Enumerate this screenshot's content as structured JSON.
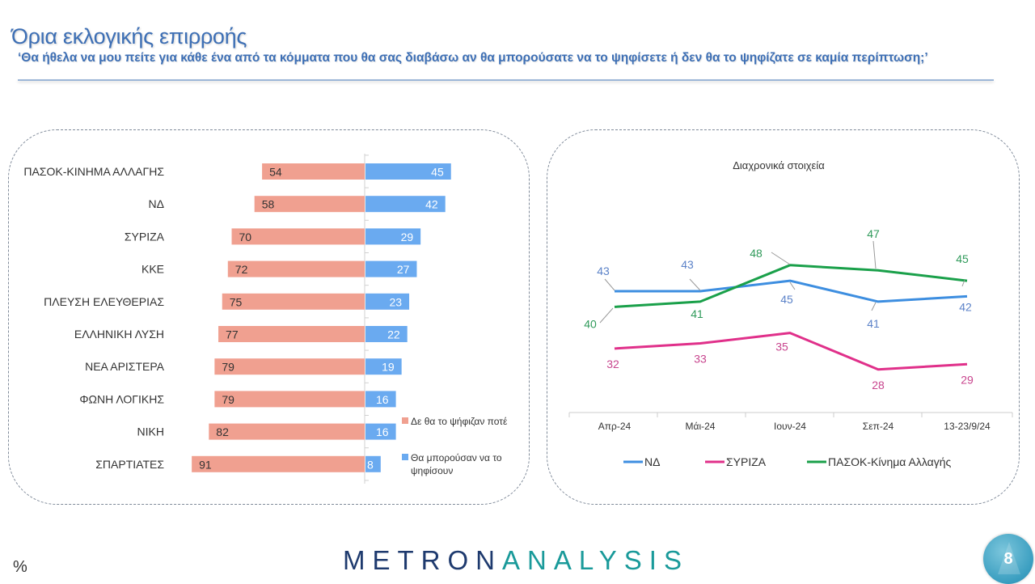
{
  "header": {
    "title": "Όρια εκλογικής επιρροής",
    "subtitle": "‘Θα ήθελα να μου πείτε για κάθε ένα από τα  κόμματα που θα σας διαβάσω αν θα μπορούσατε να το ψηφίσετε ή δεν θα το ψηφίζατε σε καμία περίπτωση;’"
  },
  "footer": {
    "unit_label": "%",
    "logo_part1": "METRON",
    "logo_part2": "ANALYSIS",
    "page_number": "8"
  },
  "colors": {
    "never": "#f0a090",
    "could": "#6aaaf0",
    "nd": "#3d8ee0",
    "syriza": "#e0308a",
    "pasok": "#1aa04a",
    "nd_label": "#5b82c8",
    "syriza_label": "#c8458e",
    "pasok_label": "#2f9a5a"
  },
  "chart_data": [
    {
      "type": "bar",
      "orientation": "horizontal-diverging",
      "categories": [
        "ΠΑΣΟΚ-ΚΙΝΗΜΑ ΑΛΛΑΓΗΣ",
        "ΝΔ",
        "ΣΥΡΙΖΑ",
        "ΚΚΕ",
        "ΠΛΕΥΣΗ ΕΛΕΥΘΕΡΙΑΣ",
        "ΕΛΛΗΝΙΚΗ ΛΥΣΗ",
        "ΝΕΑ ΑΡΙΣΤΕΡΑ",
        "ΦΩΝΗ ΛΟΓΙΚΗΣ",
        "ΝΙΚΗ",
        "ΣΠΑΡΤΙΑΤΕΣ"
      ],
      "series": [
        {
          "name": "Δε θα το ψήφιζαν ποτέ",
          "values": [
            54,
            58,
            70,
            72,
            75,
            77,
            79,
            79,
            82,
            91
          ]
        },
        {
          "name": "Θα μπορούσαν να το ψηφίσουν",
          "values": [
            45,
            42,
            29,
            27,
            23,
            22,
            19,
            16,
            16,
            8
          ]
        }
      ],
      "legend_position": "bottom-right",
      "legend": [
        "Δε θα το ψήφιζαν ποτέ",
        "Θα μπορούσαν να το ψηφίσουν"
      ],
      "unit": "%"
    },
    {
      "type": "line",
      "title": "Διαχρονικά στοιχεία",
      "categories": [
        "Απρ-24",
        "Μάι-24",
        "Ιουν-24",
        "Σεπ-24",
        "13-23/9/24"
      ],
      "series": [
        {
          "name": "ΝΔ",
          "values": [
            43,
            43,
            45,
            41,
            42
          ]
        },
        {
          "name": "ΣΥΡΙΖΑ",
          "values": [
            32,
            33,
            35,
            28,
            29
          ]
        },
        {
          "name": "ΠΑΣΟΚ-Κίνημα Αλλαγής",
          "values": [
            40,
            41,
            48,
            47,
            45
          ]
        }
      ],
      "legend_position": "bottom",
      "grid": false
    }
  ]
}
